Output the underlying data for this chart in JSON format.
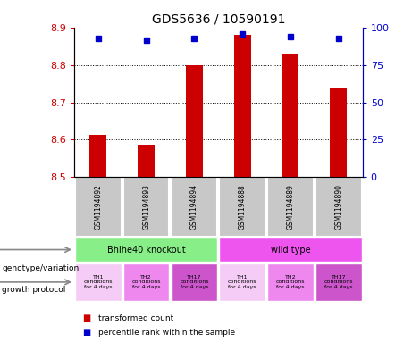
{
  "title": "GDS5636 / 10590191",
  "samples": [
    "GSM1194892",
    "GSM1194893",
    "GSM1194894",
    "GSM1194888",
    "GSM1194889",
    "GSM1194890"
  ],
  "transformed_counts": [
    8.613,
    8.585,
    8.8,
    8.883,
    8.828,
    8.74
  ],
  "percentile_ranks": [
    93,
    92,
    93,
    96,
    94,
    93
  ],
  "ylim_left": [
    8.5,
    8.9
  ],
  "ylim_right": [
    0,
    100
  ],
  "yticks_left": [
    8.5,
    8.6,
    8.7,
    8.8,
    8.9
  ],
  "yticks_right": [
    0,
    25,
    50,
    75,
    100
  ],
  "bar_color": "#cc0000",
  "dot_color": "#0000cc",
  "grid_color": "#000000",
  "bg_color": "#ffffff",
  "plot_bg": "#ffffff",
  "gsm_bg": "#c8c8c8",
  "genotype_groups": [
    {
      "label": "Bhlhe40 knockout",
      "start": 0,
      "end": 3,
      "color": "#88ee88"
    },
    {
      "label": "wild type",
      "start": 3,
      "end": 6,
      "color": "#ee55ee"
    }
  ],
  "growth_protocols": [
    {
      "label": "TH1\nconditions\nfor 4 days",
      "color": "#f5ccf5"
    },
    {
      "label": "TH2\nconditions\nfor 4 days",
      "color": "#ee88ee"
    },
    {
      "label": "TH17\nconditions\nfor 4 days",
      "color": "#cc55cc"
    },
    {
      "label": "TH1\nconditions\nfor 4 days",
      "color": "#f5ccf5"
    },
    {
      "label": "TH2\nconditions\nfor 4 days",
      "color": "#ee88ee"
    },
    {
      "label": "TH17\nconditions\nfor 4 days",
      "color": "#cc55cc"
    }
  ],
  "legend_items": [
    {
      "label": "transformed count",
      "color": "#cc0000"
    },
    {
      "label": "percentile rank within the sample",
      "color": "#0000cc"
    }
  ],
  "left_axis_color": "#cc0000",
  "right_axis_color": "#0000cc",
  "arrow_color": "#888888",
  "label_genotype": "genotype/variation",
  "label_growth": "growth protocol"
}
